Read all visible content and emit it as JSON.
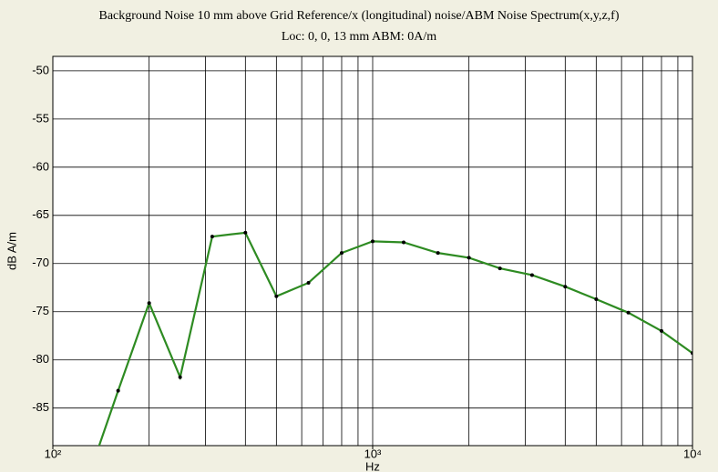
{
  "chart_data": {
    "type": "line",
    "title": "Background Noise 10 mm above Grid Reference/x (longitudinal)  noise/ABM Noise Spectrum(x,y,z,f)",
    "subtitle": "Loc: 0, 0, 13 mm ABM: 0A/m",
    "xlabel": "Hz",
    "ylabel": "dB A/m",
    "x": [
      125,
      160,
      200,
      250,
      315,
      400,
      500,
      630,
      800,
      1000,
      1250,
      1600,
      2000,
      2500,
      3150,
      4000,
      5000,
      6300,
      8000,
      10000
    ],
    "series": [
      {
        "name": "noise",
        "color": "#2e8b22",
        "values": [
          -93.5,
          -83.2,
          -74.1,
          -81.8,
          -67.2,
          -66.8,
          -73.4,
          -72.0,
          -68.9,
          -67.7,
          -67.8,
          -68.9,
          -69.4,
          -70.5,
          -71.2,
          -72.4,
          -73.7,
          -75.1,
          -77.0,
          -79.3
        ]
      }
    ],
    "xscale": "log",
    "xlim": [
      100,
      10000
    ],
    "xticks": [
      {
        "value": 100,
        "label": "10²"
      },
      {
        "value": 1000,
        "label": "10³"
      },
      {
        "value": 10000,
        "label": "10⁴"
      }
    ],
    "xgrid": [
      200,
      300,
      400,
      500,
      600,
      700,
      800,
      900,
      1000,
      2000,
      3000,
      4000,
      5000,
      6000,
      7000,
      8000,
      9000
    ],
    "ylim": [
      -88.9,
      -48.5
    ],
    "yticks": [
      -50,
      -55,
      -60,
      -65,
      -70,
      -75,
      -80,
      -85
    ],
    "grid": true
  }
}
